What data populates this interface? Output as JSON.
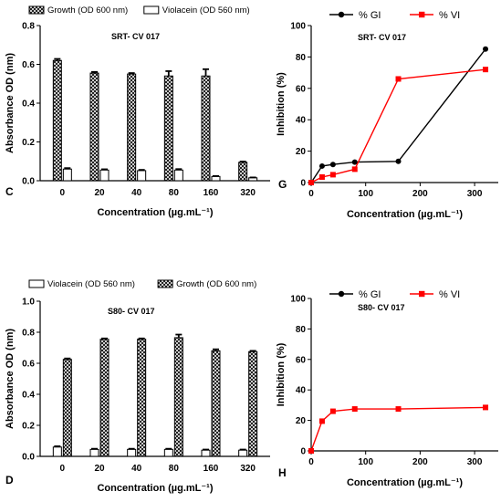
{
  "chart_data": [
    {
      "panel": "C",
      "type": "bar",
      "title": "SRT- CV 017",
      "xlabel": "Concentration (µg.mL⁻¹)",
      "ylabel": "Absorbance OD (nm)",
      "ylim": [
        0,
        0.8
      ],
      "yticks": [
        "0.0",
        "0.2",
        "0.4",
        "0.6",
        "0.8"
      ],
      "categories": [
        "0",
        "20",
        "40",
        "80",
        "160",
        "320"
      ],
      "legend_position": "top",
      "series": [
        {
          "name": "Growth (OD 600 nm)",
          "pattern": "crosshatch",
          "values": [
            0.62,
            0.555,
            0.55,
            0.54,
            0.54,
            0.095
          ],
          "errors": [
            0.008,
            0.006,
            0.005,
            0.025,
            0.035,
            0.004
          ]
        },
        {
          "name": "Violacein (OD 560 nm)",
          "pattern": "white",
          "values": [
            0.06,
            0.055,
            0.052,
            0.055,
            0.022,
            0.015
          ],
          "errors": [
            0.005,
            0.004,
            0.004,
            0.005,
            0.002,
            0.002
          ]
        }
      ]
    },
    {
      "panel": "G",
      "type": "line",
      "title": "SRT- CV 017",
      "xlabel": "Concentration (µg.mL⁻¹)",
      "ylabel": "Inhibition (%)",
      "xlim": [
        0,
        330
      ],
      "ylim": [
        0,
        100
      ],
      "xticks": [
        "0",
        "100",
        "200",
        "300"
      ],
      "yticks": [
        "0",
        "20",
        "40",
        "60",
        "80",
        "100"
      ],
      "legend_position": "top",
      "series": [
        {
          "name": "% GI",
          "color": "#000000",
          "marker": "circle",
          "x": [
            0,
            20,
            40,
            80,
            160,
            320
          ],
          "y": [
            0,
            10.5,
            11.5,
            13,
            13.5,
            85
          ]
        },
        {
          "name": "% VI",
          "color": "#ff0000",
          "marker": "square",
          "x": [
            0,
            20,
            40,
            80,
            160,
            320
          ],
          "y": [
            0,
            3.5,
            5,
            8.5,
            66,
            72
          ]
        }
      ]
    },
    {
      "panel": "D",
      "type": "bar",
      "title": "S80- CV 017",
      "xlabel": "Concentration (µg.mL⁻¹)",
      "ylabel": "Absorbance OD (nm)",
      "ylim": [
        0,
        1.0
      ],
      "yticks": [
        "0.0",
        "0.2",
        "0.4",
        "0.6",
        "0.8",
        "1.0"
      ],
      "categories": [
        "0",
        "20",
        "40",
        "80",
        "160",
        "320"
      ],
      "legend_position": "top",
      "series": [
        {
          "name": "Violacein (OD 560 nm)",
          "pattern": "white",
          "values": [
            0.06,
            0.045,
            0.045,
            0.045,
            0.04,
            0.04
          ],
          "errors": [
            0.005,
            0.004,
            0.004,
            0.004,
            0.004,
            0.004
          ]
        },
        {
          "name": "Growth (OD 600 nm)",
          "pattern": "crosshatch",
          "values": [
            0.625,
            0.755,
            0.755,
            0.765,
            0.68,
            0.675
          ],
          "errors": [
            0.006,
            0.005,
            0.005,
            0.02,
            0.01,
            0.005
          ]
        }
      ]
    },
    {
      "panel": "H",
      "type": "line",
      "title": "S80- CV 017",
      "xlabel": "Concentration (µg.mL⁻¹)",
      "ylabel": "Inhibition (%)",
      "xlim": [
        0,
        330
      ],
      "ylim": [
        0,
        100
      ],
      "xticks": [
        "0",
        "100",
        "200",
        "300"
      ],
      "yticks": [
        "0",
        "20",
        "40",
        "60",
        "80",
        "100"
      ],
      "legend_position": "top",
      "series": [
        {
          "name": "% GI",
          "color": "#000000",
          "marker": "circle",
          "x": [],
          "y": []
        },
        {
          "name": "% VI",
          "color": "#ff0000",
          "marker": "square",
          "x": [
            0,
            20,
            40,
            80,
            160,
            320
          ],
          "y": [
            0,
            19.5,
            26,
            27.5,
            27.5,
            28.5
          ]
        }
      ]
    }
  ]
}
